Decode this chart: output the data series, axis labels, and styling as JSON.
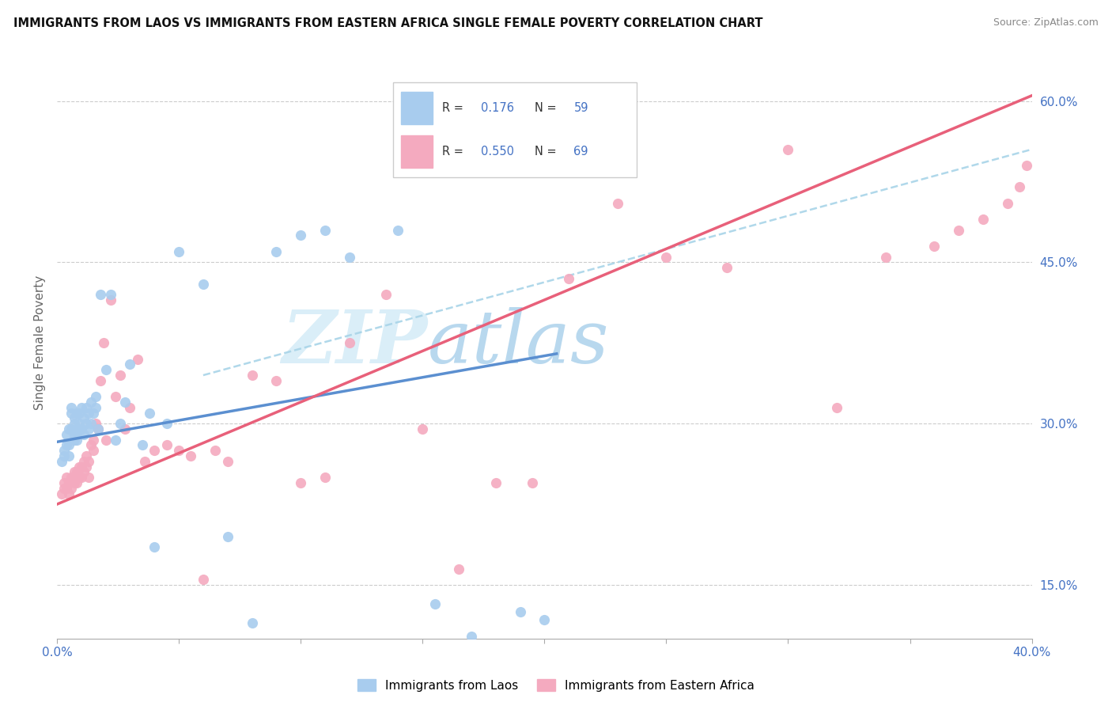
{
  "title": "IMMIGRANTS FROM LAOS VS IMMIGRANTS FROM EASTERN AFRICA SINGLE FEMALE POVERTY CORRELATION CHART",
  "source": "Source: ZipAtlas.com",
  "ylabel": "Single Female Poverty",
  "xlim": [
    0.0,
    0.4
  ],
  "ylim": [
    0.1,
    0.65
  ],
  "x_ticks": [
    0.0,
    0.05,
    0.1,
    0.15,
    0.2,
    0.25,
    0.3,
    0.35,
    0.4
  ],
  "x_tick_labels": [
    "0.0%",
    "",
    "",
    "",
    "",
    "",
    "",
    "",
    "40.0%"
  ],
  "y_ticks_right": [
    0.15,
    0.3,
    0.45,
    0.6
  ],
  "y_tick_labels_right": [
    "15.0%",
    "30.0%",
    "45.0%",
    "60.0%"
  ],
  "color_laos": "#A8CCEE",
  "color_eastern_africa": "#F4AABF",
  "color_line_laos": "#5B8FD0",
  "color_line_eastern_africa": "#E8607A",
  "color_line_dashed": "#A8D4E8",
  "watermark_zip": "ZIP",
  "watermark_atlas": "atlas",
  "watermark_color_zip": "#D8EDF8",
  "watermark_color_atlas": "#C0D8EE",
  "laos_x": [
    0.002,
    0.003,
    0.003,
    0.004,
    0.004,
    0.005,
    0.005,
    0.005,
    0.006,
    0.006,
    0.006,
    0.007,
    0.007,
    0.007,
    0.007,
    0.008,
    0.008,
    0.008,
    0.009,
    0.009,
    0.009,
    0.01,
    0.01,
    0.011,
    0.011,
    0.012,
    0.012,
    0.013,
    0.013,
    0.014,
    0.014,
    0.015,
    0.016,
    0.016,
    0.017,
    0.018,
    0.02,
    0.022,
    0.024,
    0.026,
    0.028,
    0.03,
    0.035,
    0.038,
    0.04,
    0.045,
    0.05,
    0.06,
    0.07,
    0.08,
    0.09,
    0.1,
    0.11,
    0.12,
    0.14,
    0.155,
    0.17,
    0.19,
    0.2
  ],
  "laos_y": [
    0.265,
    0.27,
    0.275,
    0.28,
    0.29,
    0.27,
    0.28,
    0.295,
    0.295,
    0.31,
    0.315,
    0.285,
    0.29,
    0.3,
    0.305,
    0.285,
    0.29,
    0.31,
    0.295,
    0.3,
    0.31,
    0.295,
    0.315,
    0.29,
    0.305,
    0.3,
    0.315,
    0.295,
    0.31,
    0.3,
    0.32,
    0.31,
    0.315,
    0.325,
    0.295,
    0.42,
    0.35,
    0.42,
    0.285,
    0.3,
    0.32,
    0.355,
    0.28,
    0.31,
    0.185,
    0.3,
    0.46,
    0.43,
    0.195,
    0.115,
    0.46,
    0.475,
    0.48,
    0.455,
    0.48,
    0.132,
    0.102,
    0.125,
    0.118
  ],
  "eastern_africa_x": [
    0.002,
    0.003,
    0.003,
    0.004,
    0.004,
    0.005,
    0.005,
    0.006,
    0.006,
    0.007,
    0.007,
    0.007,
    0.008,
    0.008,
    0.009,
    0.009,
    0.01,
    0.01,
    0.011,
    0.011,
    0.012,
    0.012,
    0.013,
    0.013,
    0.014,
    0.015,
    0.015,
    0.016,
    0.017,
    0.018,
    0.019,
    0.02,
    0.022,
    0.024,
    0.026,
    0.028,
    0.03,
    0.033,
    0.036,
    0.04,
    0.045,
    0.05,
    0.055,
    0.06,
    0.065,
    0.07,
    0.08,
    0.09,
    0.1,
    0.11,
    0.12,
    0.135,
    0.15,
    0.165,
    0.18,
    0.195,
    0.21,
    0.23,
    0.25,
    0.275,
    0.3,
    0.32,
    0.34,
    0.36,
    0.37,
    0.38,
    0.39,
    0.395,
    0.398
  ],
  "eastern_africa_y": [
    0.235,
    0.24,
    0.245,
    0.24,
    0.25,
    0.235,
    0.245,
    0.24,
    0.25,
    0.245,
    0.25,
    0.255,
    0.245,
    0.255,
    0.25,
    0.26,
    0.25,
    0.26,
    0.255,
    0.265,
    0.26,
    0.27,
    0.25,
    0.265,
    0.28,
    0.275,
    0.285,
    0.3,
    0.295,
    0.34,
    0.375,
    0.285,
    0.415,
    0.325,
    0.345,
    0.295,
    0.315,
    0.36,
    0.265,
    0.275,
    0.28,
    0.275,
    0.27,
    0.155,
    0.275,
    0.265,
    0.345,
    0.34,
    0.245,
    0.25,
    0.375,
    0.42,
    0.295,
    0.165,
    0.245,
    0.245,
    0.435,
    0.505,
    0.455,
    0.445,
    0.555,
    0.315,
    0.455,
    0.465,
    0.48,
    0.49,
    0.505,
    0.52,
    0.54
  ],
  "laos_line_x0": 0.0,
  "laos_line_x1": 0.205,
  "laos_line_y0": 0.283,
  "laos_line_y1": 0.365,
  "ea_line_x0": 0.0,
  "ea_line_x1": 0.4,
  "ea_line_y0": 0.225,
  "ea_line_y1": 0.605,
  "dashed_line_x0": 0.06,
  "dashed_line_x1": 0.4,
  "dashed_line_y0": 0.345,
  "dashed_line_y1": 0.555
}
